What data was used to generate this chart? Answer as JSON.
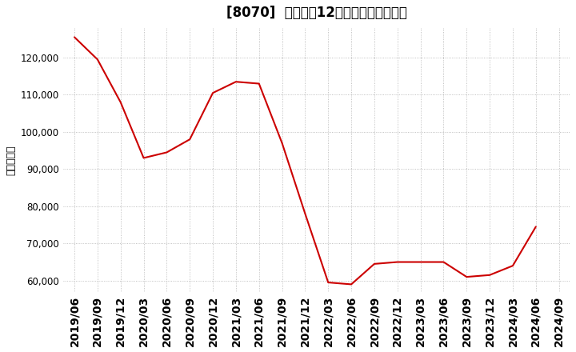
{
  "title": "[8070]  売上高の12か月移動合計の推移",
  "ylabel": "（百万円）",
  "line_color": "#cc0000",
  "background_color": "#ffffff",
  "plot_bg_color": "#ffffff",
  "grid_color": "#b0b0b0",
  "dates": [
    "2019/06",
    "2019/09",
    "2019/12",
    "2020/03",
    "2020/06",
    "2020/09",
    "2020/12",
    "2021/03",
    "2021/06",
    "2021/09",
    "2021/12",
    "2022/03",
    "2022/06",
    "2022/09",
    "2022/12",
    "2023/03",
    "2023/06",
    "2023/09",
    "2023/12",
    "2024/03",
    "2024/06",
    "2024/09"
  ],
  "values": [
    125500,
    119500,
    108000,
    93000,
    94500,
    98000,
    110500,
    113500,
    113000,
    97000,
    78000,
    59500,
    59000,
    64500,
    65000,
    65000,
    65000,
    61000,
    61500,
    64000,
    74500,
    null
  ],
  "ylim": [
    57000,
    128000
  ],
  "yticks": [
    60000,
    70000,
    80000,
    90000,
    100000,
    110000,
    120000
  ],
  "tick_fontsize": 8.5,
  "title_fontsize": 12
}
